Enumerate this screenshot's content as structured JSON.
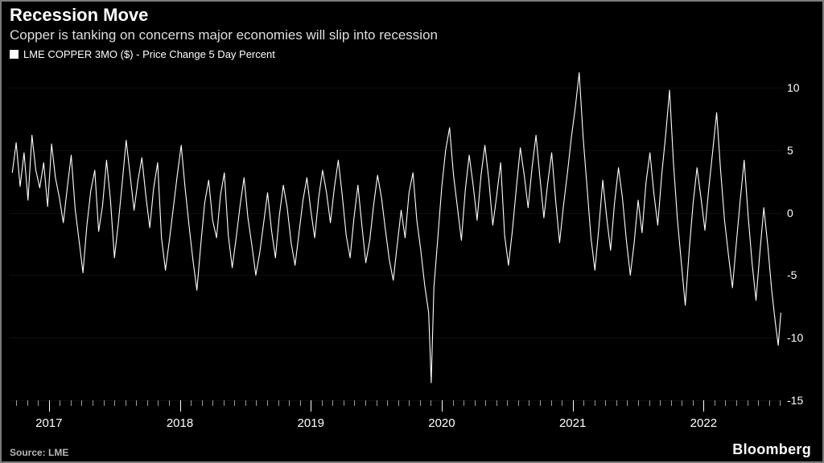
{
  "title": "Recession Move",
  "subtitle": "Copper is tanking on concerns major economies will slip into recession",
  "legend": {
    "swatch_color": "#ffffff",
    "label": "LME COPPER 3MO ($) - Price Change 5 Day Percent"
  },
  "source": "Source: LME",
  "brand": "Bloomberg",
  "chart": {
    "type": "line",
    "background_color": "#000000",
    "series_color": "#ffffff",
    "line_width": 1.1,
    "frame_color": "#7a7a7a",
    "ylim": [
      -15,
      12
    ],
    "yticks": [
      -15,
      -10,
      -5,
      0,
      5,
      10
    ],
    "x_domain": [
      2016.7,
      2022.6
    ],
    "xticks_major": [
      2017,
      2018,
      2019,
      2020,
      2021,
      2022
    ],
    "xticks_minor_per_year": 12,
    "title_fontsize": 22,
    "subtitle_fontsize": 17,
    "tick_fontsize": 14,
    "data": [
      [
        2016.72,
        3.2
      ],
      [
        2016.75,
        5.6
      ],
      [
        2016.78,
        2.1
      ],
      [
        2016.81,
        4.8
      ],
      [
        2016.84,
        1.0
      ],
      [
        2016.87,
        6.2
      ],
      [
        2016.9,
        3.4
      ],
      [
        2016.93,
        2.0
      ],
      [
        2016.96,
        4.0
      ],
      [
        2016.99,
        0.5
      ],
      [
        2017.02,
        5.5
      ],
      [
        2017.05,
        2.8
      ],
      [
        2017.08,
        1.2
      ],
      [
        2017.11,
        -0.8
      ],
      [
        2017.14,
        2.0
      ],
      [
        2017.17,
        4.6
      ],
      [
        2017.2,
        0.3
      ],
      [
        2017.23,
        -2.2
      ],
      [
        2017.26,
        -4.8
      ],
      [
        2017.29,
        -1.0
      ],
      [
        2017.32,
        1.8
      ],
      [
        2017.35,
        3.4
      ],
      [
        2017.38,
        -1.5
      ],
      [
        2017.41,
        0.6
      ],
      [
        2017.44,
        4.2
      ],
      [
        2017.47,
        1.0
      ],
      [
        2017.5,
        -3.6
      ],
      [
        2017.53,
        -0.8
      ],
      [
        2017.56,
        2.4
      ],
      [
        2017.59,
        5.8
      ],
      [
        2017.62,
        3.0
      ],
      [
        2017.65,
        0.2
      ],
      [
        2017.68,
        2.6
      ],
      [
        2017.71,
        4.4
      ],
      [
        2017.74,
        1.4
      ],
      [
        2017.77,
        -1.2
      ],
      [
        2017.8,
        2.0
      ],
      [
        2017.83,
        4.0
      ],
      [
        2017.86,
        -2.0
      ],
      [
        2017.89,
        -4.6
      ],
      [
        2017.92,
        -2.2
      ],
      [
        2017.95,
        0.4
      ],
      [
        2017.98,
        3.0
      ],
      [
        2018.01,
        5.4
      ],
      [
        2018.04,
        2.0
      ],
      [
        2018.07,
        -1.0
      ],
      [
        2018.1,
        -3.8
      ],
      [
        2018.13,
        -6.2
      ],
      [
        2018.16,
        -2.5
      ],
      [
        2018.19,
        0.8
      ],
      [
        2018.22,
        2.6
      ],
      [
        2018.25,
        -0.6
      ],
      [
        2018.28,
        -2.0
      ],
      [
        2018.31,
        1.4
      ],
      [
        2018.34,
        3.2
      ],
      [
        2018.37,
        -1.8
      ],
      [
        2018.4,
        -4.4
      ],
      [
        2018.43,
        -2.0
      ],
      [
        2018.46,
        0.6
      ],
      [
        2018.49,
        2.8
      ],
      [
        2018.52,
        -0.4
      ],
      [
        2018.55,
        -2.6
      ],
      [
        2018.58,
        -5.0
      ],
      [
        2018.61,
        -3.2
      ],
      [
        2018.64,
        -0.8
      ],
      [
        2018.67,
        1.6
      ],
      [
        2018.7,
        -1.4
      ],
      [
        2018.73,
        -3.6
      ],
      [
        2018.76,
        -0.2
      ],
      [
        2018.79,
        2.2
      ],
      [
        2018.82,
        0.4
      ],
      [
        2018.85,
        -2.4
      ],
      [
        2018.88,
        -4.2
      ],
      [
        2018.91,
        -1.6
      ],
      [
        2018.94,
        1.0
      ],
      [
        2018.97,
        2.8
      ],
      [
        2019.0,
        0.2
      ],
      [
        2019.03,
        -2.0
      ],
      [
        2019.06,
        1.2
      ],
      [
        2019.09,
        3.4
      ],
      [
        2019.12,
        1.6
      ],
      [
        2019.15,
        -0.8
      ],
      [
        2019.18,
        2.0
      ],
      [
        2019.21,
        4.2
      ],
      [
        2019.24,
        1.4
      ],
      [
        2019.27,
        -1.8
      ],
      [
        2019.3,
        -3.6
      ],
      [
        2019.33,
        -0.4
      ],
      [
        2019.36,
        2.2
      ],
      [
        2019.39,
        -1.0
      ],
      [
        2019.42,
        -4.0
      ],
      [
        2019.45,
        -2.2
      ],
      [
        2019.48,
        0.6
      ],
      [
        2019.51,
        3.0
      ],
      [
        2019.54,
        1.2
      ],
      [
        2019.57,
        -1.4
      ],
      [
        2019.6,
        -3.8
      ],
      [
        2019.63,
        -5.4
      ],
      [
        2019.66,
        -2.6
      ],
      [
        2019.69,
        0.2
      ],
      [
        2019.72,
        -2.0
      ],
      [
        2019.75,
        1.6
      ],
      [
        2019.78,
        3.2
      ],
      [
        2019.81,
        -0.6
      ],
      [
        2019.84,
        -3.0
      ],
      [
        2019.87,
        -5.8
      ],
      [
        2019.9,
        -8.0
      ],
      [
        2019.92,
        -13.6
      ],
      [
        2019.94,
        -6.0
      ],
      [
        2019.97,
        -2.0
      ],
      [
        2020.0,
        2.0
      ],
      [
        2020.03,
        5.0
      ],
      [
        2020.06,
        6.8
      ],
      [
        2020.09,
        3.0
      ],
      [
        2020.12,
        0.4
      ],
      [
        2020.15,
        -2.2
      ],
      [
        2020.18,
        1.8
      ],
      [
        2020.21,
        4.6
      ],
      [
        2020.24,
        2.2
      ],
      [
        2020.27,
        -0.6
      ],
      [
        2020.3,
        3.0
      ],
      [
        2020.33,
        5.4
      ],
      [
        2020.36,
        2.6
      ],
      [
        2020.39,
        -1.0
      ],
      [
        2020.42,
        1.4
      ],
      [
        2020.45,
        4.0
      ],
      [
        2020.48,
        -1.8
      ],
      [
        2020.51,
        -4.2
      ],
      [
        2020.54,
        -1.4
      ],
      [
        2020.57,
        2.0
      ],
      [
        2020.6,
        5.2
      ],
      [
        2020.63,
        3.0
      ],
      [
        2020.66,
        0.4
      ],
      [
        2020.69,
        3.6
      ],
      [
        2020.72,
        6.2
      ],
      [
        2020.75,
        2.8
      ],
      [
        2020.78,
        -0.4
      ],
      [
        2020.81,
        2.4
      ],
      [
        2020.84,
        4.8
      ],
      [
        2020.87,
        1.0
      ],
      [
        2020.9,
        -2.4
      ],
      [
        2020.93,
        0.6
      ],
      [
        2020.96,
        3.2
      ],
      [
        2020.99,
        6.0
      ],
      [
        2021.02,
        8.4
      ],
      [
        2021.05,
        11.2
      ],
      [
        2021.08,
        6.0
      ],
      [
        2021.11,
        2.0
      ],
      [
        2021.14,
        -2.0
      ],
      [
        2021.17,
        -4.6
      ],
      [
        2021.2,
        -1.2
      ],
      [
        2021.23,
        2.6
      ],
      [
        2021.26,
        -0.4
      ],
      [
        2021.29,
        -3.0
      ],
      [
        2021.32,
        0.8
      ],
      [
        2021.35,
        3.6
      ],
      [
        2021.38,
        1.2
      ],
      [
        2021.41,
        -2.2
      ],
      [
        2021.44,
        -5.0
      ],
      [
        2021.47,
        -2.4
      ],
      [
        2021.5,
        1.0
      ],
      [
        2021.53,
        -1.6
      ],
      [
        2021.56,
        2.4
      ],
      [
        2021.59,
        4.8
      ],
      [
        2021.62,
        1.6
      ],
      [
        2021.65,
        -1.0
      ],
      [
        2021.68,
        3.0
      ],
      [
        2021.71,
        6.2
      ],
      [
        2021.74,
        9.8
      ],
      [
        2021.77,
        4.0
      ],
      [
        2021.8,
        -0.5
      ],
      [
        2021.83,
        -4.0
      ],
      [
        2021.86,
        -7.4
      ],
      [
        2021.89,
        -3.0
      ],
      [
        2021.92,
        0.8
      ],
      [
        2021.95,
        3.6
      ],
      [
        2021.98,
        1.2
      ],
      [
        2022.01,
        -1.4
      ],
      [
        2022.04,
        2.0
      ],
      [
        2022.07,
        5.0
      ],
      [
        2022.1,
        8.0
      ],
      [
        2022.13,
        3.4
      ],
      [
        2022.16,
        -0.6
      ],
      [
        2022.19,
        -3.4
      ],
      [
        2022.22,
        -6.0
      ],
      [
        2022.25,
        -2.4
      ],
      [
        2022.28,
        1.0
      ],
      [
        2022.31,
        4.2
      ],
      [
        2022.34,
        -0.2
      ],
      [
        2022.37,
        -4.0
      ],
      [
        2022.4,
        -7.0
      ],
      [
        2022.43,
        -3.2
      ],
      [
        2022.46,
        0.4
      ],
      [
        2022.49,
        -2.6
      ],
      [
        2022.52,
        -6.2
      ],
      [
        2022.55,
        -9.0
      ],
      [
        2022.57,
        -10.6
      ],
      [
        2022.59,
        -8.0
      ]
    ]
  }
}
